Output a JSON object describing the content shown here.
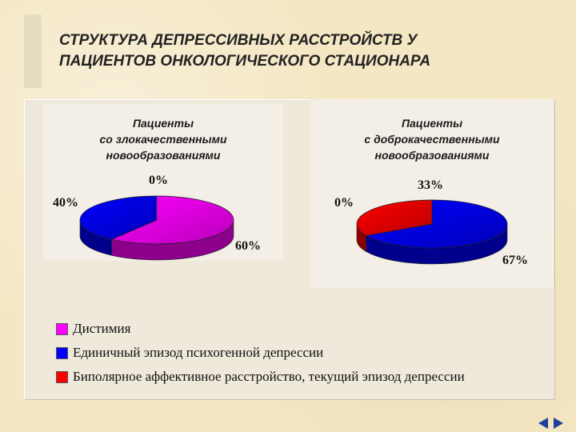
{
  "title": {
    "line1": "СТРУКТУРА ДЕПРЕССИВНЫХ РАССТРОЙСТВ У",
    "line2": "ПАЦИЕНТОВ ОНКОЛОГИЧЕСКОГО СТАЦИОНАРА"
  },
  "colors": {
    "dysthymia": "#ff00ff",
    "single_episode": "#0000ff",
    "bipolar": "#ff0000",
    "nav_arrows": "#1f3f9a"
  },
  "legend": [
    {
      "label": "Дистимия",
      "color": "#ff00ff"
    },
    {
      "label": "Единичный эпизод психогенной депрессии",
      "color": "#0000ff"
    },
    {
      "label": "Биполярное аффективное расстройство, текущий эпизод депрессии",
      "color": "#ff0000"
    }
  ],
  "chart_data": [
    {
      "type": "pie",
      "title_lines": [
        "Пациенты",
        "со злокачественными",
        "новообразованиями"
      ],
      "categories": [
        "Дистимия",
        "Единичный эпизод психогенной депрессии",
        "Биполярное аффективное расстройство, текущий эпизод депрессии"
      ],
      "values": [
        60,
        40,
        0
      ],
      "labels": [
        "60%",
        "40%",
        "0%"
      ]
    },
    {
      "type": "pie",
      "title_lines": [
        "Пациенты",
        "с доброкачественными",
        "новообразованиями"
      ],
      "categories": [
        "Дистимия",
        "Единичный эпизод психогенной депрессии",
        "Биполярное аффективное расстройство, текущий эпизод депрессии"
      ],
      "values": [
        0,
        67,
        33
      ],
      "labels": [
        "0%",
        "67%",
        "33%"
      ]
    }
  ]
}
